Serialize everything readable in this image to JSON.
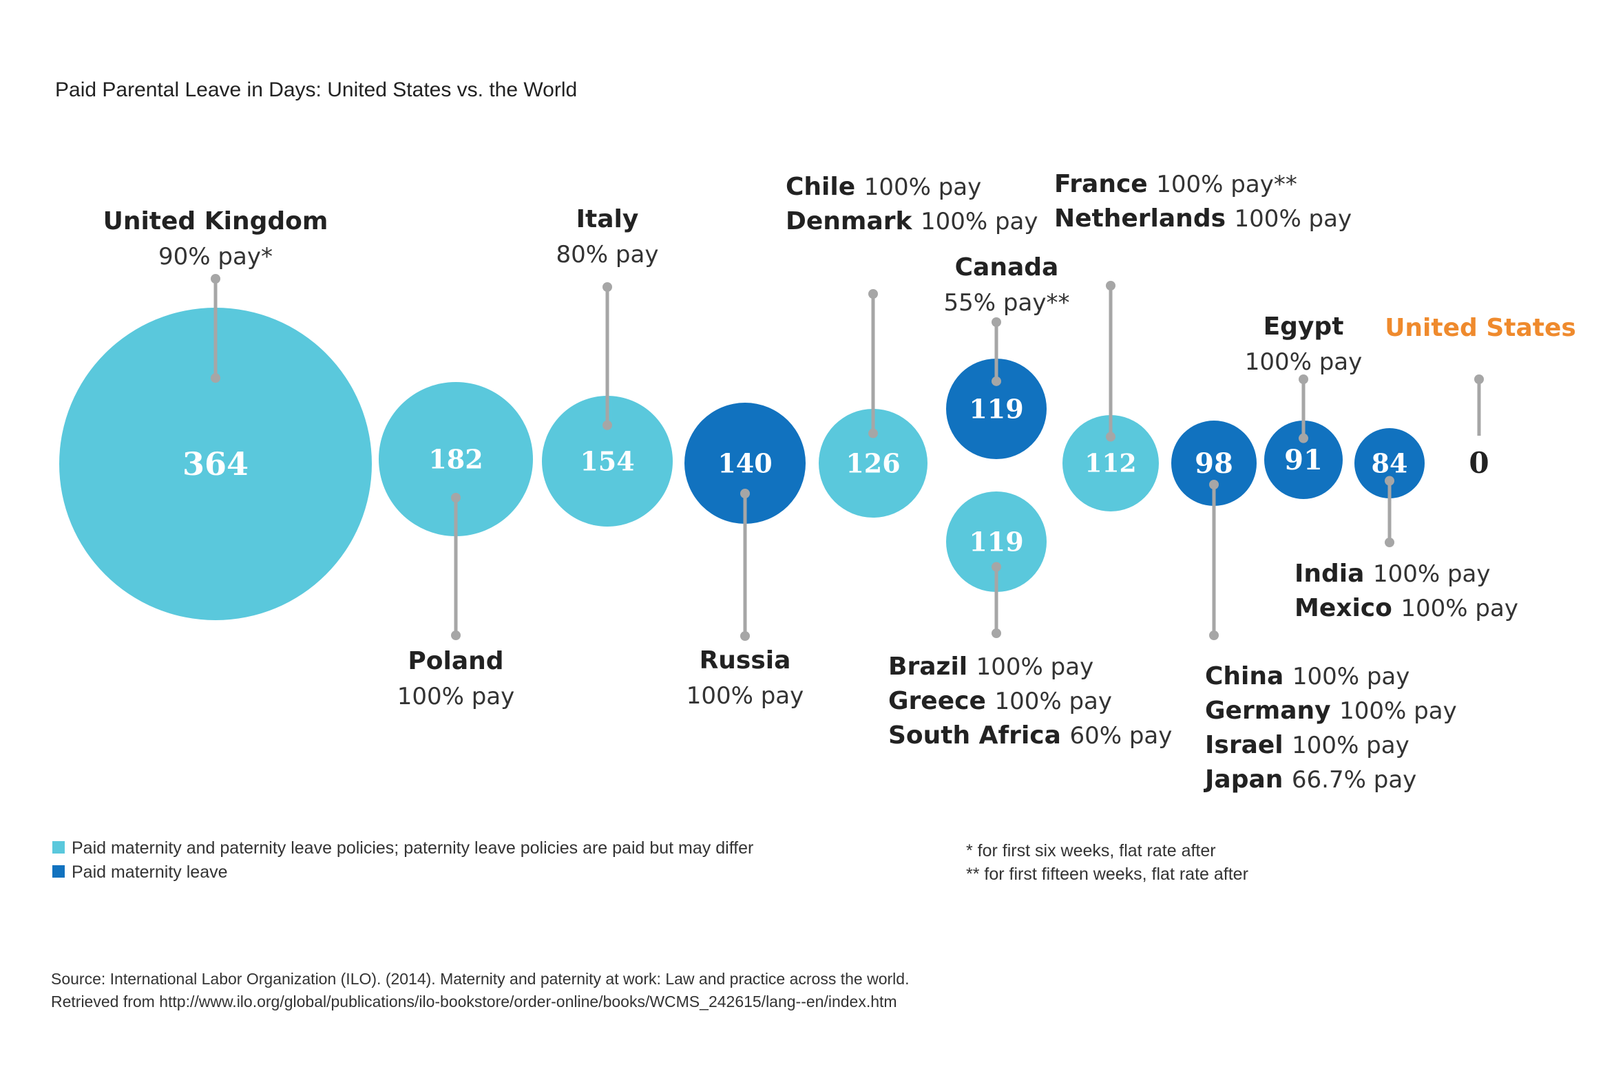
{
  "colors": {
    "light": "#5ac8dc",
    "dark": "#1172bf",
    "us": "#ef8a2d",
    "connector": "#a6a6a6"
  },
  "chart_data": {
    "type": "bubble",
    "title": "Paid Parental Leave in Days: United States vs. the World",
    "unit": "days",
    "points": [
      {
        "value": 364,
        "value_label": "364",
        "policy": "light",
        "countries": [
          {
            "name": "United Kingdom",
            "pay": "90% pay*"
          }
        ]
      },
      {
        "value": 182,
        "value_label": "182",
        "policy": "light",
        "countries": [
          {
            "name": "Poland",
            "pay": "100% pay"
          }
        ]
      },
      {
        "value": 154,
        "value_label": "154",
        "policy": "light",
        "countries": [
          {
            "name": "Italy",
            "pay": "80% pay"
          }
        ]
      },
      {
        "value": 140,
        "value_label": "140",
        "policy": "dark",
        "countries": [
          {
            "name": "Russia",
            "pay": "100% pay"
          }
        ]
      },
      {
        "value": 126,
        "value_label": "126",
        "policy": "light",
        "countries": [
          {
            "name": "Chile",
            "pay": "100% pay"
          },
          {
            "name": "Denmark",
            "pay": "100% pay"
          }
        ]
      },
      {
        "value": 119,
        "value_label": "119",
        "policy": "dark",
        "countries": [
          {
            "name": "Canada",
            "pay": "55% pay**"
          }
        ]
      },
      {
        "value": 119,
        "value_label": "119",
        "policy": "light",
        "countries": [
          {
            "name": "Brazil",
            "pay": "100% pay"
          },
          {
            "name": "Greece",
            "pay": "100% pay"
          },
          {
            "name": "South Africa",
            "pay": "60% pay"
          }
        ]
      },
      {
        "value": 112,
        "value_label": "112",
        "policy": "light",
        "countries": [
          {
            "name": "France",
            "pay": "100% pay**"
          },
          {
            "name": "Netherlands",
            "pay": "100% pay"
          }
        ]
      },
      {
        "value": 98,
        "value_label": "98",
        "policy": "dark",
        "countries": [
          {
            "name": "China",
            "pay": "100% pay"
          },
          {
            "name": "Germany",
            "pay": "100% pay"
          },
          {
            "name": "Israel",
            "pay": "100% pay"
          },
          {
            "name": "Japan",
            "pay": "66.7% pay"
          }
        ]
      },
      {
        "value": 91,
        "value_label": "91",
        "policy": "dark",
        "countries": [
          {
            "name": "Egypt",
            "pay": "100% pay"
          }
        ]
      },
      {
        "value": 84,
        "value_label": "84",
        "policy": "dark",
        "countries": [
          {
            "name": "India",
            "pay": "100% pay"
          },
          {
            "name": "Mexico",
            "pay": "100% pay"
          }
        ]
      },
      {
        "value": 0,
        "value_label": "0",
        "policy": "us",
        "countries": [
          {
            "name": "United States",
            "pay": ""
          }
        ]
      }
    ],
    "legend": [
      {
        "key": "light",
        "label": "Paid maternity and paternity leave policies; paternity leave policies are paid but may differ"
      },
      {
        "key": "dark",
        "label": "Paid maternity leave"
      }
    ],
    "notes": [
      "* for first six weeks, flat rate after",
      "** for first fifteen weeks, flat rate after"
    ],
    "source": [
      "Source: International Labor Organization (ILO). (2014). Maternity and paternity at work: Law and practice across the world.",
      "Retrieved from http://www.ilo.org/global/publications/ilo-bookstore/order-online/books/WCMS_242615/lang--en/index.htm"
    ]
  }
}
